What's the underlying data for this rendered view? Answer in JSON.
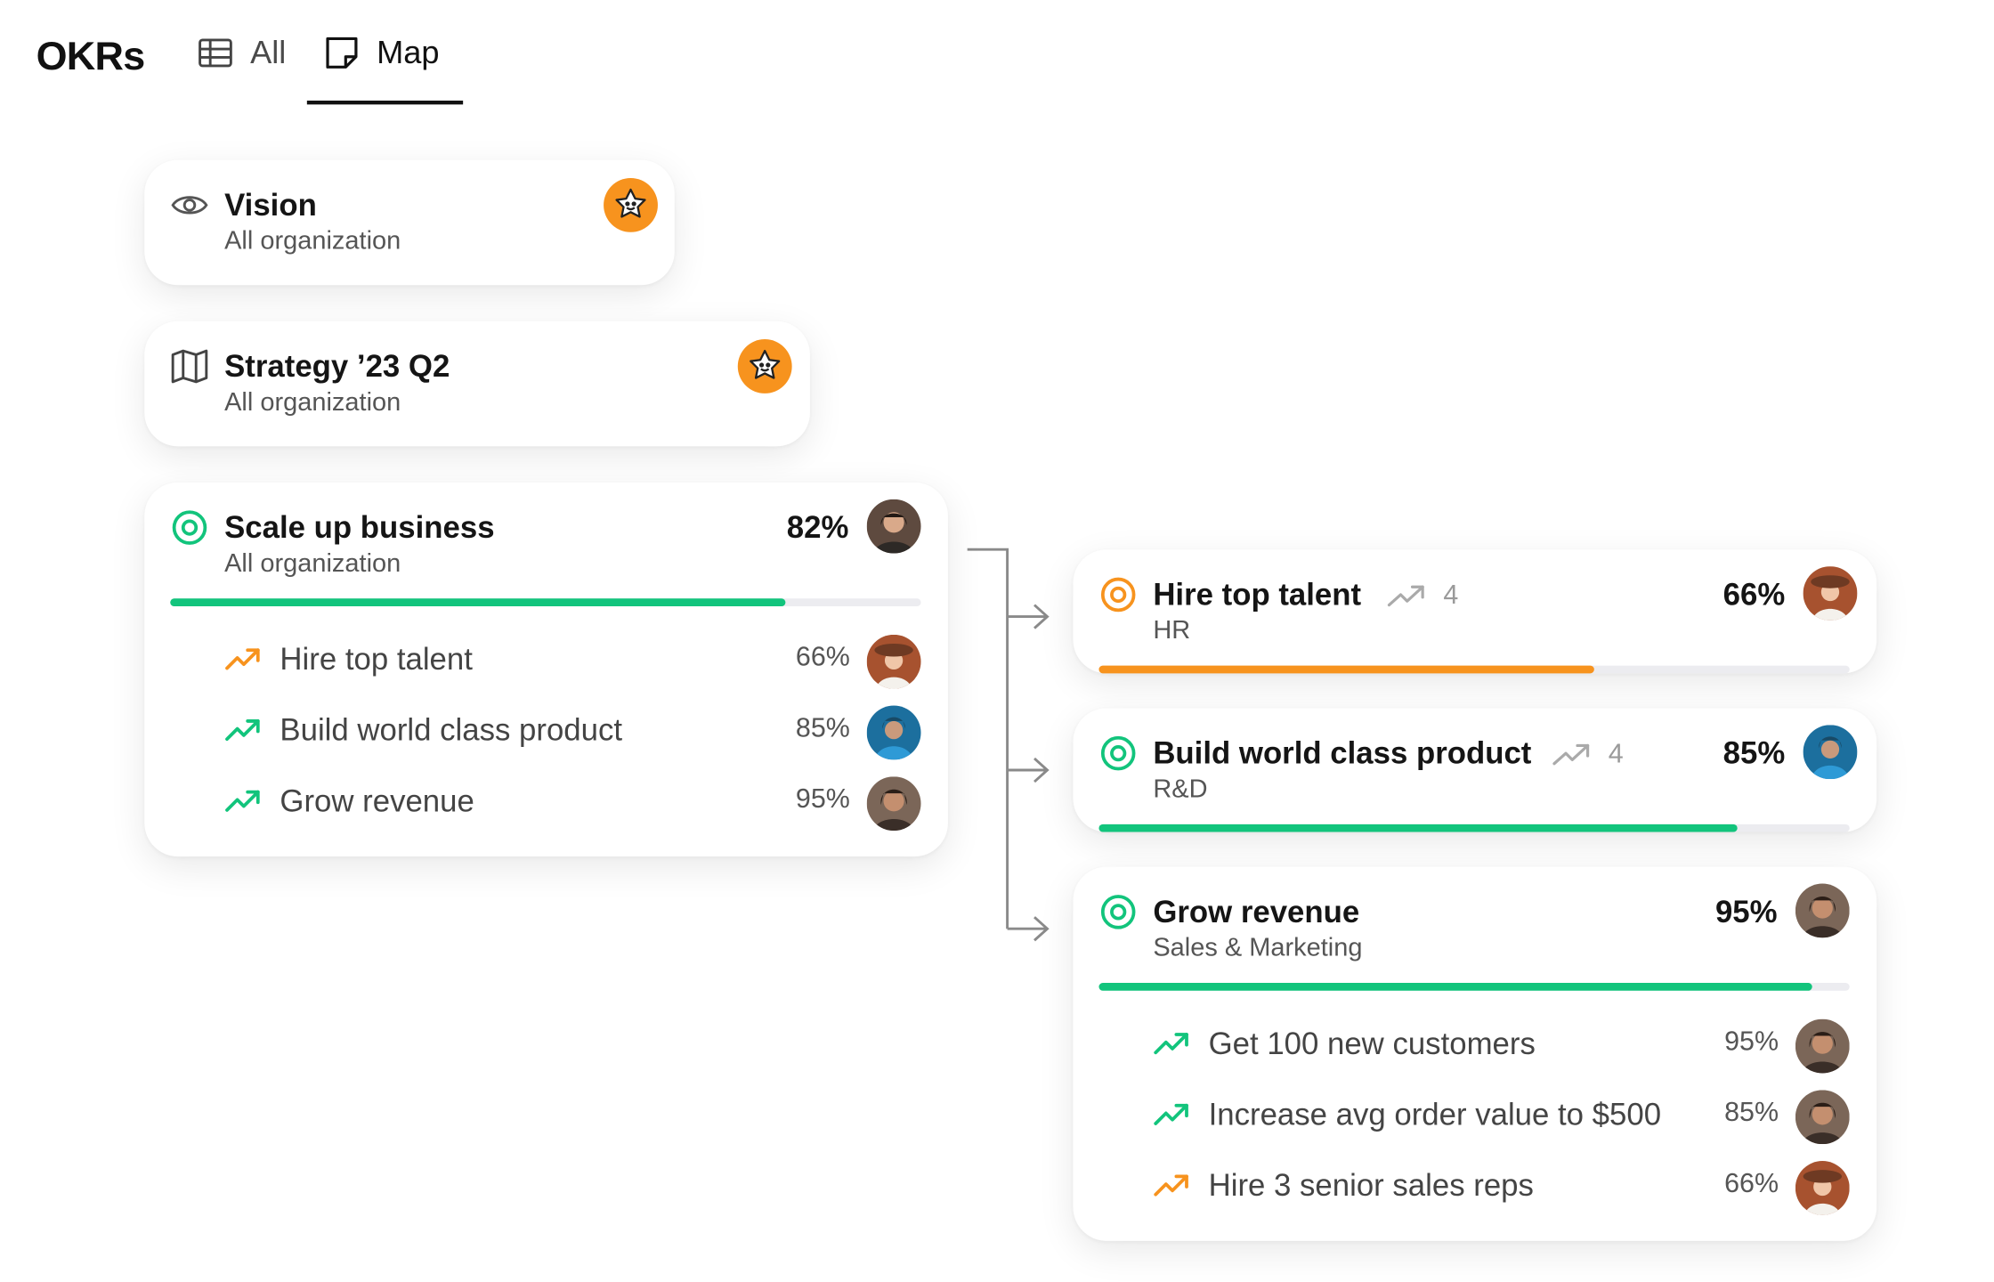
{
  "header": {
    "title": "OKRs",
    "tabs": [
      {
        "label": "All",
        "icon": "table-icon",
        "active": false
      },
      {
        "label": "Map",
        "icon": "sticky-note-icon",
        "active": true
      }
    ]
  },
  "colors": {
    "green": "#12c47c",
    "orange": "#f7931e",
    "track": "#ececf0",
    "badge": "#f7931e"
  },
  "vision": {
    "title": "Vision",
    "subtitle": "All organization",
    "icon": "eye-icon",
    "badge": "star-face-icon"
  },
  "strategy": {
    "title": "Strategy ’23 Q2",
    "subtitle": "All organization",
    "icon": "map-icon",
    "badge": "star-face-icon"
  },
  "main_objective": {
    "title": "Scale up business",
    "subtitle": "All organization",
    "percent": "82%",
    "progress": 0.82,
    "icon": "target-icon",
    "key_results": [
      {
        "label": "Hire top talent",
        "percent": "66%",
        "trend": "orange"
      },
      {
        "label": "Build world class product",
        "percent": "85%",
        "trend": "green"
      },
      {
        "label": "Grow revenue",
        "percent": "95%",
        "trend": "green"
      }
    ]
  },
  "children": [
    {
      "title": "Hire top talent",
      "subtitle": "HR",
      "count": "4",
      "percent": "66%",
      "progress": 0.66,
      "color": "orange"
    },
    {
      "title": "Build world class product",
      "subtitle": "R&D",
      "count": "4",
      "percent": "85%",
      "progress": 0.85,
      "color": "green"
    },
    {
      "title": "Grow revenue",
      "subtitle": "Sales &  Marketing",
      "percent": "95%",
      "progress": 0.95,
      "color": "green",
      "key_results": [
        {
          "label": "Get 100 new customers",
          "percent": "95%",
          "trend": "green"
        },
        {
          "label": "Increase avg order value to $500",
          "percent": "85%",
          "trend": "green"
        },
        {
          "label": "Hire 3 senior sales reps",
          "percent": "66%",
          "trend": "orange"
        }
      ]
    }
  ]
}
